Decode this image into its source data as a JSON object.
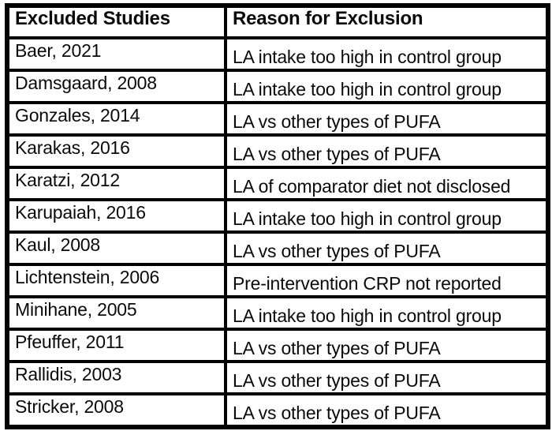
{
  "table": {
    "title_semantic": "excluded-studies-table",
    "headers": [
      "Excluded Studies",
      "Reason for Exclusion"
    ],
    "rows": [
      {
        "study": "Baer, 2021",
        "reason": "LA intake too high in control group"
      },
      {
        "study": "Damsgaard, 2008",
        "reason": "LA intake too high in control group"
      },
      {
        "study": "Gonzales, 2014",
        "reason": "LA vs other types of PUFA"
      },
      {
        "study": "Karakas, 2016",
        "reason": "LA vs other types of PUFA"
      },
      {
        "study": "Karatzi, 2012",
        "reason": "LA of comparator diet not disclosed"
      },
      {
        "study": "Karupaiah, 2016",
        "reason": "LA intake too high in control group"
      },
      {
        "study": "Kaul, 2008",
        "reason": "LA vs other types of PUFA"
      },
      {
        "study": "Lichtenstein, 2006",
        "reason": "Pre-intervention CRP not reported"
      },
      {
        "study": "Minihane, 2005",
        "reason": "LA intake too high in control group"
      },
      {
        "study": "Pfeuffer, 2011",
        "reason": "LA vs other types of PUFA"
      },
      {
        "study": "Rallidis, 2003",
        "reason": "LA vs other types of PUFA"
      },
      {
        "study": "Stricker, 2008",
        "reason": "LA vs other types of PUFA"
      }
    ]
  },
  "colors": {
    "border": "#000000",
    "text": "#0a0a0a",
    "background": "#ffffff"
  }
}
